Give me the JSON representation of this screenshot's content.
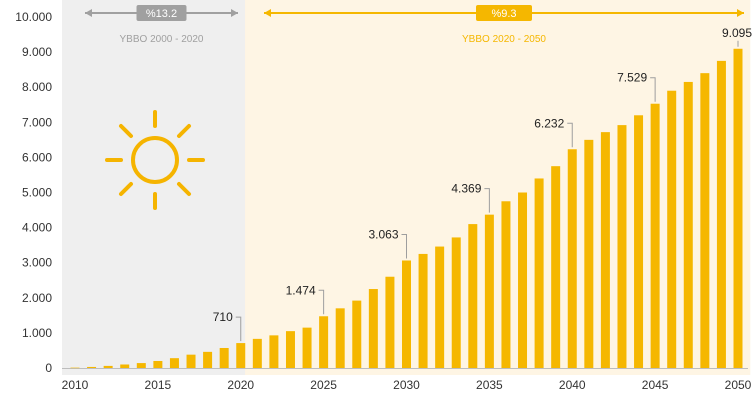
{
  "chart_data": {
    "type": "bar",
    "title": "",
    "xlabel": "",
    "ylabel": "",
    "ylim": [
      0,
      10000
    ],
    "yticks": [
      "0",
      "1.000",
      "2.000",
      "3.000",
      "4.000",
      "5.000",
      "6.000",
      "7.000",
      "8.000",
      "9.000",
      "10.000"
    ],
    "xticks": [
      "2010",
      "2015",
      "2020",
      "2025",
      "2030",
      "2035",
      "2040",
      "2045",
      "2050"
    ],
    "categories": [
      2010,
      2011,
      2012,
      2013,
      2014,
      2015,
      2016,
      2017,
      2018,
      2019,
      2020,
      2021,
      2022,
      2023,
      2024,
      2025,
      2026,
      2027,
      2028,
      2029,
      2030,
      2031,
      2032,
      2033,
      2034,
      2035,
      2036,
      2037,
      2038,
      2039,
      2040,
      2041,
      2042,
      2043,
      2044,
      2045,
      2046,
      2047,
      2048,
      2049,
      2050
    ],
    "values": [
      10,
      30,
      60,
      100,
      140,
      200,
      280,
      380,
      460,
      570,
      710,
      830,
      930,
      1050,
      1150,
      1474,
      1700,
      1920,
      2250,
      2600,
      3063,
      3250,
      3460,
      3720,
      4100,
      4369,
      4750,
      5000,
      5400,
      5750,
      6232,
      6500,
      6720,
      6920,
      7200,
      7529,
      7900,
      8150,
      8400,
      8750,
      9095
    ],
    "data_labels": [
      {
        "year": 2020,
        "text": "710"
      },
      {
        "year": 2025,
        "text": "1.474"
      },
      {
        "year": 2030,
        "text": "3.063"
      },
      {
        "year": 2035,
        "text": "4.369"
      },
      {
        "year": 2040,
        "text": "6.232"
      },
      {
        "year": 2045,
        "text": "7.529"
      },
      {
        "year": 2050,
        "text": "9.095"
      }
    ],
    "periods": [
      {
        "badge": "%13.2",
        "label": "YBBO 2000 - 2020",
        "from": 2009.5,
        "to": 2020.5
      },
      {
        "badge": "%9.3",
        "label": "YBBO 2020 - 2050",
        "from": 2020.5,
        "to": 2050.5
      }
    ],
    "grid": false,
    "legend": "none"
  },
  "colors": {
    "bar": "#F5B700",
    "period1_bg": "#EFEFEF",
    "period2_bg": "#FEF5E4",
    "period1_accent": "#A0A0A0",
    "period2_accent": "#F5B700",
    "sun": "#F5B400"
  },
  "icon": "sun-icon"
}
